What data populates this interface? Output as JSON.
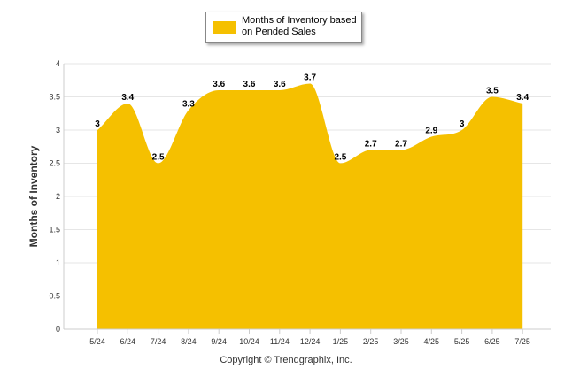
{
  "chart_data": {
    "type": "area",
    "categories": [
      "5/24",
      "6/24",
      "7/24",
      "8/24",
      "9/24",
      "10/24",
      "11/24",
      "12/24",
      "1/25",
      "2/25",
      "3/25",
      "4/25",
      "5/25",
      "6/25",
      "7/25"
    ],
    "series": [
      {
        "name": "Months of Inventory based on Pended Sales",
        "values": [
          3,
          3.4,
          2.5,
          3.3,
          3.6,
          3.6,
          3.6,
          3.7,
          2.5,
          2.7,
          2.7,
          2.9,
          3,
          3.5,
          3.4
        ]
      }
    ],
    "data_labels": [
      "3",
      "3.4",
      "2.5",
      "3.3",
      "3.6",
      "3.6",
      "3.6",
      "3.7",
      "2.5",
      "2.7",
      "2.7",
      "2.9",
      "3",
      "3.5",
      "3.4"
    ],
    "ylabel": "Months of Inventory",
    "ylim": [
      0,
      4
    ],
    "yticks": [
      0,
      0.5,
      1,
      1.5,
      2,
      2.5,
      3,
      3.5,
      4
    ],
    "ytick_labels": [
      "0",
      "0.5",
      "1",
      "1.5",
      "2",
      "2.5",
      "3",
      "3.5",
      "4"
    ],
    "grid": true,
    "legend_position": "top-center",
    "fill_color": "#f5c000"
  },
  "footer": {
    "copyright": "Copyright © Trendgraphix, Inc."
  }
}
